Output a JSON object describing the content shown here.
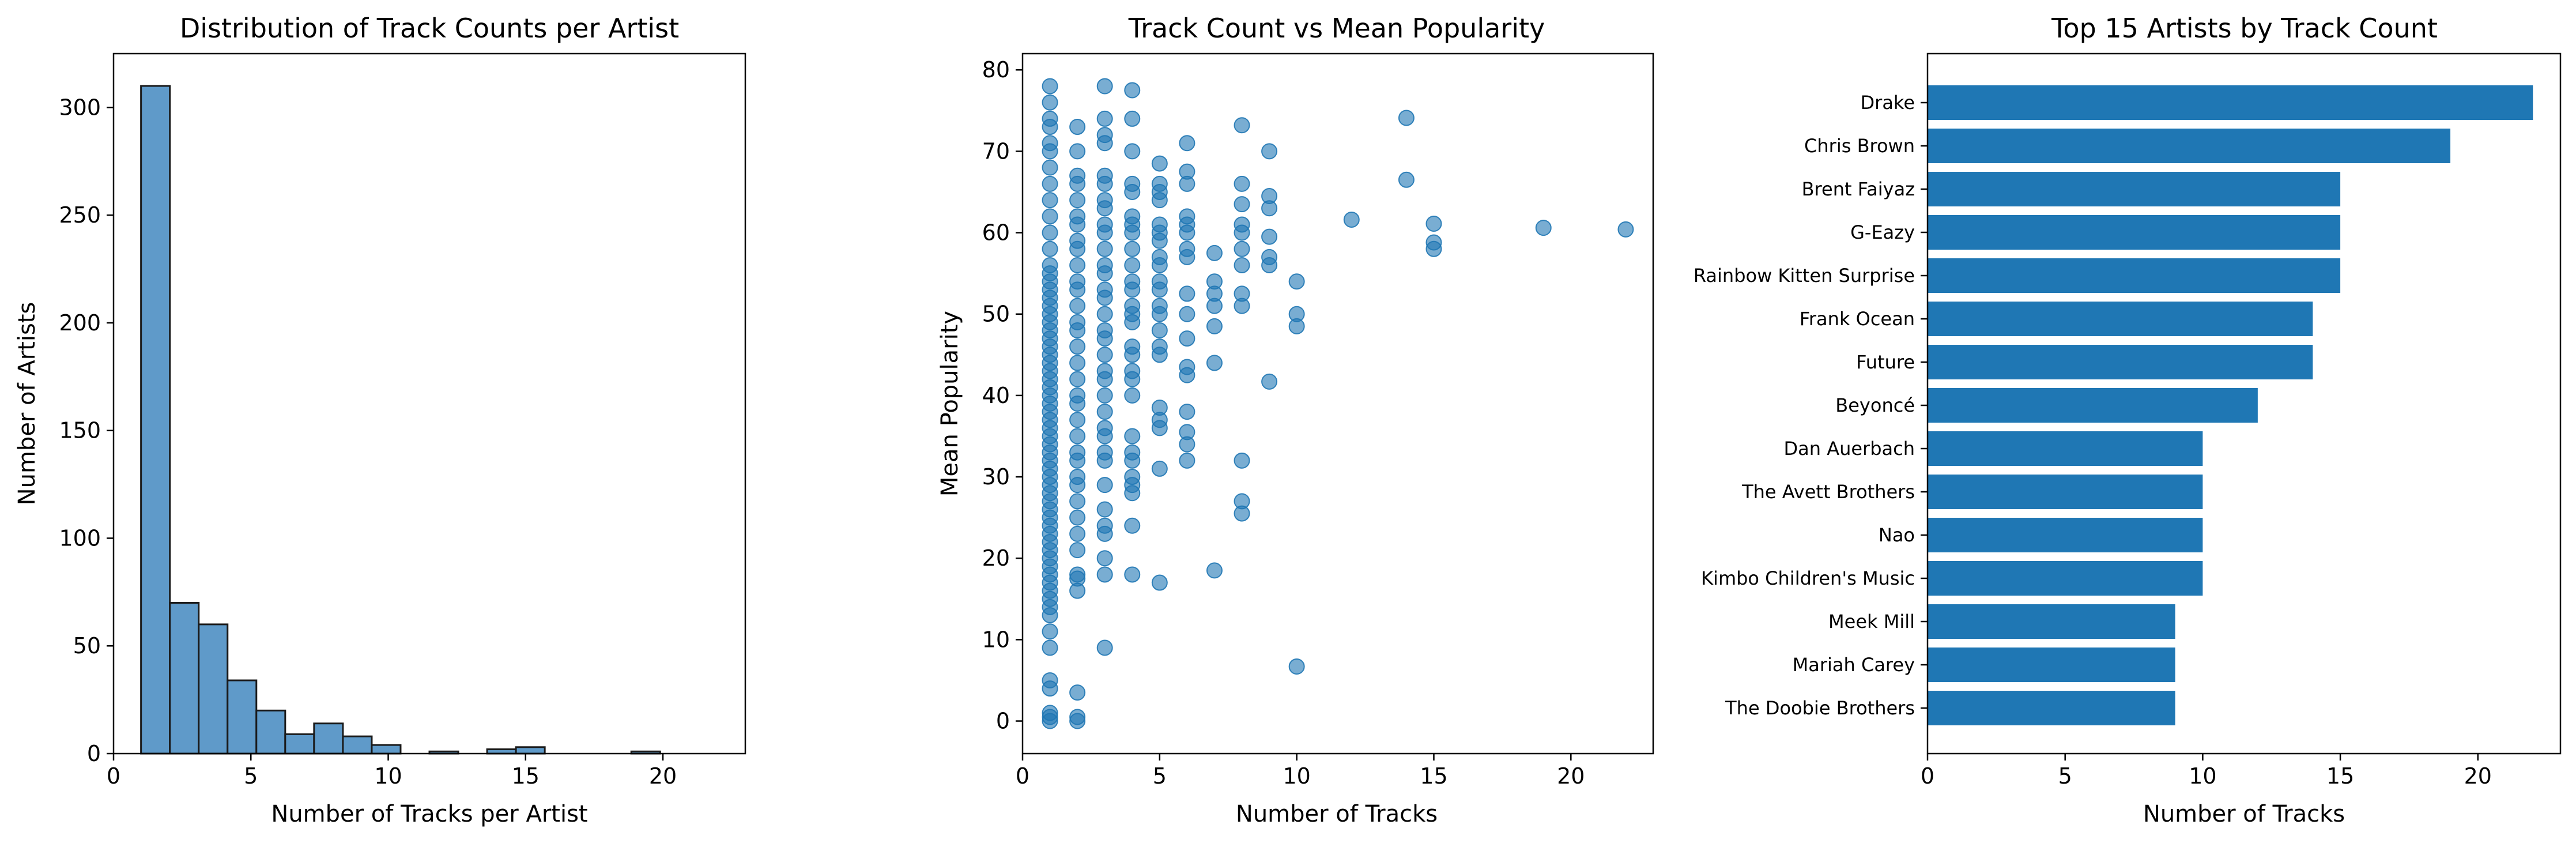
{
  "chart_data": [
    {
      "type": "bar",
      "title": "Distribution of Track Counts per Artist",
      "xlabel": "Number of Tracks per Artist",
      "ylabel": "Number of Artists",
      "xlim": [
        0,
        23
      ],
      "ylim": [
        0,
        325
      ],
      "xticks": [
        0,
        5,
        10,
        15,
        20
      ],
      "yticks": [
        0,
        50,
        100,
        150,
        200,
        250,
        300
      ],
      "bin_start": 1,
      "bin_width": 1.05,
      "values": [
        310,
        70,
        60,
        34,
        20,
        9,
        14,
        8,
        4,
        0,
        1,
        0,
        2,
        3,
        0,
        0,
        0,
        1,
        0,
        0
      ],
      "color": "#5f9ac9",
      "edgecolor": "#1a1a1a"
    },
    {
      "type": "scatter",
      "title": "Track Count vs Mean Popularity",
      "xlabel": "Number of Tracks",
      "ylabel": "Mean Popularity",
      "xlim": [
        0,
        23
      ],
      "ylim": [
        -4,
        82
      ],
      "xticks": [
        0,
        5,
        10,
        15,
        20
      ],
      "yticks": [
        0,
        10,
        20,
        30,
        40,
        50,
        60,
        70,
        80
      ],
      "color": "#1f77b4",
      "points": [
        [
          1,
          0
        ],
        [
          1,
          0.5
        ],
        [
          1,
          1
        ],
        [
          1,
          4
        ],
        [
          1,
          5
        ],
        [
          1,
          9
        ],
        [
          1,
          11
        ],
        [
          1,
          13
        ],
        [
          1,
          14
        ],
        [
          1,
          15
        ],
        [
          1,
          16
        ],
        [
          1,
          17
        ],
        [
          1,
          18
        ],
        [
          1,
          19
        ],
        [
          1,
          20
        ],
        [
          1,
          21
        ],
        [
          1,
          22
        ],
        [
          1,
          23
        ],
        [
          1,
          24
        ],
        [
          1,
          25
        ],
        [
          1,
          26
        ],
        [
          1,
          27
        ],
        [
          1,
          28
        ],
        [
          1,
          29
        ],
        [
          1,
          30
        ],
        [
          1,
          31
        ],
        [
          1,
          32
        ],
        [
          1,
          33
        ],
        [
          1,
          34
        ],
        [
          1,
          35
        ],
        [
          1,
          36
        ],
        [
          1,
          37
        ],
        [
          1,
          38
        ],
        [
          1,
          39
        ],
        [
          1,
          40
        ],
        [
          1,
          41
        ],
        [
          1,
          42
        ],
        [
          1,
          43
        ],
        [
          1,
          44
        ],
        [
          1,
          45
        ],
        [
          1,
          46
        ],
        [
          1,
          47
        ],
        [
          1,
          48
        ],
        [
          1,
          49
        ],
        [
          1,
          50
        ],
        [
          1,
          51
        ],
        [
          1,
          52
        ],
        [
          1,
          53
        ],
        [
          1,
          54
        ],
        [
          1,
          55
        ],
        [
          1,
          56
        ],
        [
          1,
          58
        ],
        [
          1,
          60
        ],
        [
          1,
          62
        ],
        [
          1,
          64
        ],
        [
          1,
          66
        ],
        [
          1,
          68
        ],
        [
          1,
          70
        ],
        [
          1,
          71
        ],
        [
          1,
          73
        ],
        [
          1,
          74
        ],
        [
          1,
          76
        ],
        [
          1,
          78
        ],
        [
          2,
          0
        ],
        [
          2,
          0.5
        ],
        [
          2,
          3.5
        ],
        [
          2,
          16
        ],
        [
          2,
          17.5
        ],
        [
          2,
          18
        ],
        [
          2,
          21
        ],
        [
          2,
          23
        ],
        [
          2,
          25
        ],
        [
          2,
          27
        ],
        [
          2,
          29
        ],
        [
          2,
          30
        ],
        [
          2,
          32
        ],
        [
          2,
          33
        ],
        [
          2,
          35
        ],
        [
          2,
          37
        ],
        [
          2,
          39
        ],
        [
          2,
          40
        ],
        [
          2,
          42
        ],
        [
          2,
          44
        ],
        [
          2,
          46
        ],
        [
          2,
          48
        ],
        [
          2,
          49
        ],
        [
          2,
          51
        ],
        [
          2,
          53
        ],
        [
          2,
          54
        ],
        [
          2,
          56
        ],
        [
          2,
          58
        ],
        [
          2,
          59
        ],
        [
          2,
          61
        ],
        [
          2,
          62
        ],
        [
          2,
          64
        ],
        [
          2,
          66
        ],
        [
          2,
          67
        ],
        [
          2,
          70
        ],
        [
          2,
          73
        ],
        [
          3,
          9
        ],
        [
          3,
          18
        ],
        [
          3,
          20
        ],
        [
          3,
          23
        ],
        [
          3,
          24
        ],
        [
          3,
          26
        ],
        [
          3,
          29
        ],
        [
          3,
          32
        ],
        [
          3,
          33
        ],
        [
          3,
          35
        ],
        [
          3,
          36
        ],
        [
          3,
          38
        ],
        [
          3,
          40
        ],
        [
          3,
          42
        ],
        [
          3,
          43
        ],
        [
          3,
          45
        ],
        [
          3,
          47
        ],
        [
          3,
          48
        ],
        [
          3,
          50
        ],
        [
          3,
          52
        ],
        [
          3,
          53
        ],
        [
          3,
          55
        ],
        [
          3,
          56
        ],
        [
          3,
          58
        ],
        [
          3,
          60
        ],
        [
          3,
          61
        ],
        [
          3,
          63
        ],
        [
          3,
          64
        ],
        [
          3,
          66
        ],
        [
          3,
          67
        ],
        [
          3,
          71
        ],
        [
          3,
          72
        ],
        [
          3,
          74
        ],
        [
          3,
          78
        ],
        [
          4,
          18
        ],
        [
          4,
          24
        ],
        [
          4,
          28
        ],
        [
          4,
          29
        ],
        [
          4,
          30
        ],
        [
          4,
          32
        ],
        [
          4,
          33
        ],
        [
          4,
          35
        ],
        [
          4,
          40
        ],
        [
          4,
          42
        ],
        [
          4,
          43
        ],
        [
          4,
          45
        ],
        [
          4,
          46
        ],
        [
          4,
          49
        ],
        [
          4,
          50
        ],
        [
          4,
          51
        ],
        [
          4,
          53
        ],
        [
          4,
          54
        ],
        [
          4,
          56
        ],
        [
          4,
          58
        ],
        [
          4,
          60
        ],
        [
          4,
          61
        ],
        [
          4,
          62
        ],
        [
          4,
          65
        ],
        [
          4,
          66
        ],
        [
          4,
          70
        ],
        [
          4,
          74
        ],
        [
          4,
          77.5
        ],
        [
          5,
          17
        ],
        [
          5,
          31
        ],
        [
          5,
          36
        ],
        [
          5,
          37
        ],
        [
          5,
          38.5
        ],
        [
          5,
          45
        ],
        [
          5,
          46
        ],
        [
          5,
          48
        ],
        [
          5,
          50
        ],
        [
          5,
          51
        ],
        [
          5,
          53
        ],
        [
          5,
          54
        ],
        [
          5,
          56
        ],
        [
          5,
          57
        ],
        [
          5,
          59
        ],
        [
          5,
          60
        ],
        [
          5,
          61
        ],
        [
          5,
          64
        ],
        [
          5,
          65
        ],
        [
          5,
          66
        ],
        [
          5,
          68.5
        ],
        [
          6,
          32
        ],
        [
          6,
          34
        ],
        [
          6,
          35.5
        ],
        [
          6,
          38
        ],
        [
          6,
          42.5
        ],
        [
          6,
          43.5
        ],
        [
          6,
          47
        ],
        [
          6,
          50
        ],
        [
          6,
          52.5
        ],
        [
          6,
          57
        ],
        [
          6,
          58
        ],
        [
          6,
          60
        ],
        [
          6,
          61
        ],
        [
          6,
          62
        ],
        [
          6,
          66
        ],
        [
          6,
          67.5
        ],
        [
          6,
          71
        ],
        [
          7,
          18.5
        ],
        [
          7,
          44
        ],
        [
          7,
          48.5
        ],
        [
          7,
          51
        ],
        [
          7,
          52.5
        ],
        [
          7,
          54
        ],
        [
          7,
          57.5
        ],
        [
          8,
          25.5
        ],
        [
          8,
          27
        ],
        [
          8,
          32
        ],
        [
          8,
          51
        ],
        [
          8,
          52.5
        ],
        [
          8,
          56
        ],
        [
          8,
          58
        ],
        [
          8,
          60
        ],
        [
          8,
          61
        ],
        [
          8,
          63.5
        ],
        [
          8,
          66
        ],
        [
          8,
          73.2
        ],
        [
          9,
          41.7
        ],
        [
          9,
          56
        ],
        [
          9,
          57
        ],
        [
          9,
          59.5
        ],
        [
          9,
          63
        ],
        [
          9,
          64.5
        ],
        [
          9,
          70
        ],
        [
          10,
          6.7
        ],
        [
          10,
          48.5
        ],
        [
          10,
          50
        ],
        [
          10,
          54
        ],
        [
          12,
          61.6
        ],
        [
          14,
          66.5
        ],
        [
          14,
          74.1
        ],
        [
          15,
          58
        ],
        [
          15,
          58.8
        ],
        [
          15,
          61.1
        ],
        [
          19,
          60.6
        ],
        [
          22,
          60.4
        ]
      ]
    },
    {
      "type": "bar",
      "orientation": "horizontal",
      "title": "Top 15 Artists by Track Count",
      "xlabel": "Number of Tracks",
      "ylabel": "",
      "xlim": [
        0,
        23
      ],
      "xticks": [
        0,
        5,
        10,
        15,
        20
      ],
      "color": "#1f77b4",
      "categories": [
        "Drake",
        "Chris Brown",
        "Brent Faiyaz",
        "G-Eazy",
        "Rainbow Kitten Surprise",
        "Frank Ocean",
        "Future",
        "Beyoncé",
        "Dan Auerbach",
        "The Avett Brothers",
        "Nao",
        "Kimbo Children's Music",
        "Meek Mill",
        "Mariah Carey",
        "The Doobie Brothers"
      ],
      "values": [
        22,
        19,
        15,
        15,
        15,
        14,
        14,
        12,
        10,
        10,
        10,
        10,
        9,
        9,
        9
      ]
    }
  ]
}
